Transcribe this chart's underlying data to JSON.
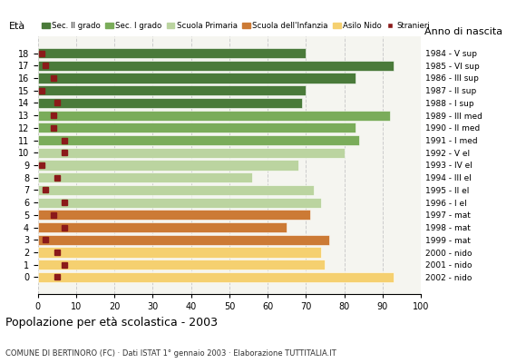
{
  "ages": [
    18,
    17,
    16,
    15,
    14,
    13,
    12,
    11,
    10,
    9,
    8,
    7,
    6,
    5,
    4,
    3,
    2,
    1,
    0
  ],
  "bar_values": [
    70,
    93,
    83,
    70,
    69,
    92,
    83,
    84,
    80,
    68,
    56,
    72,
    74,
    71,
    65,
    76,
    74,
    75,
    93
  ],
  "stranieri": [
    1,
    2,
    4,
    1,
    5,
    4,
    4,
    7,
    7,
    1,
    5,
    2,
    7,
    4,
    7,
    2,
    5,
    7,
    5
  ],
  "anni_nascita": [
    "1984 - V sup",
    "1985 - VI sup",
    "1986 - III sup",
    "1987 - II sup",
    "1988 - I sup",
    "1989 - III med",
    "1990 - II med",
    "1991 - I med",
    "1992 - V el",
    "1993 - IV el",
    "1994 - III el",
    "1995 - II el",
    "1996 - I el",
    "1997 - mat",
    "1998 - mat",
    "1999 - mat",
    "2000 - nido",
    "2001 - nido",
    "2002 - nido"
  ],
  "colors": {
    "sec2": "#4a7a3a",
    "sec1": "#7aac5a",
    "primaria": "#bbd4a0",
    "infanzia": "#cc7a35",
    "nido": "#f5d070",
    "stranieri": "#8b1a1a"
  },
  "legend_labels": [
    "Sec. II grado",
    "Sec. I grado",
    "Scuola Primaria",
    "Scuola dell'Infanzia",
    "Asilo Nido",
    "Stranieri"
  ],
  "title": "Popolazione per età scolastica - 2003",
  "subtitle": "COMUNE DI BERTINORO (FC) · Dati ISTAT 1° gennaio 2003 · Elaborazione TUTTITALIA.IT",
  "ylabel_eta": "Età",
  "ylabel_anno": "Anno di nascita",
  "xlim": [
    0,
    100
  ],
  "xticks": [
    0,
    10,
    20,
    30,
    40,
    50,
    60,
    70,
    80,
    90,
    100
  ],
  "figsize": [
    5.8,
    4.0
  ],
  "dpi": 100
}
